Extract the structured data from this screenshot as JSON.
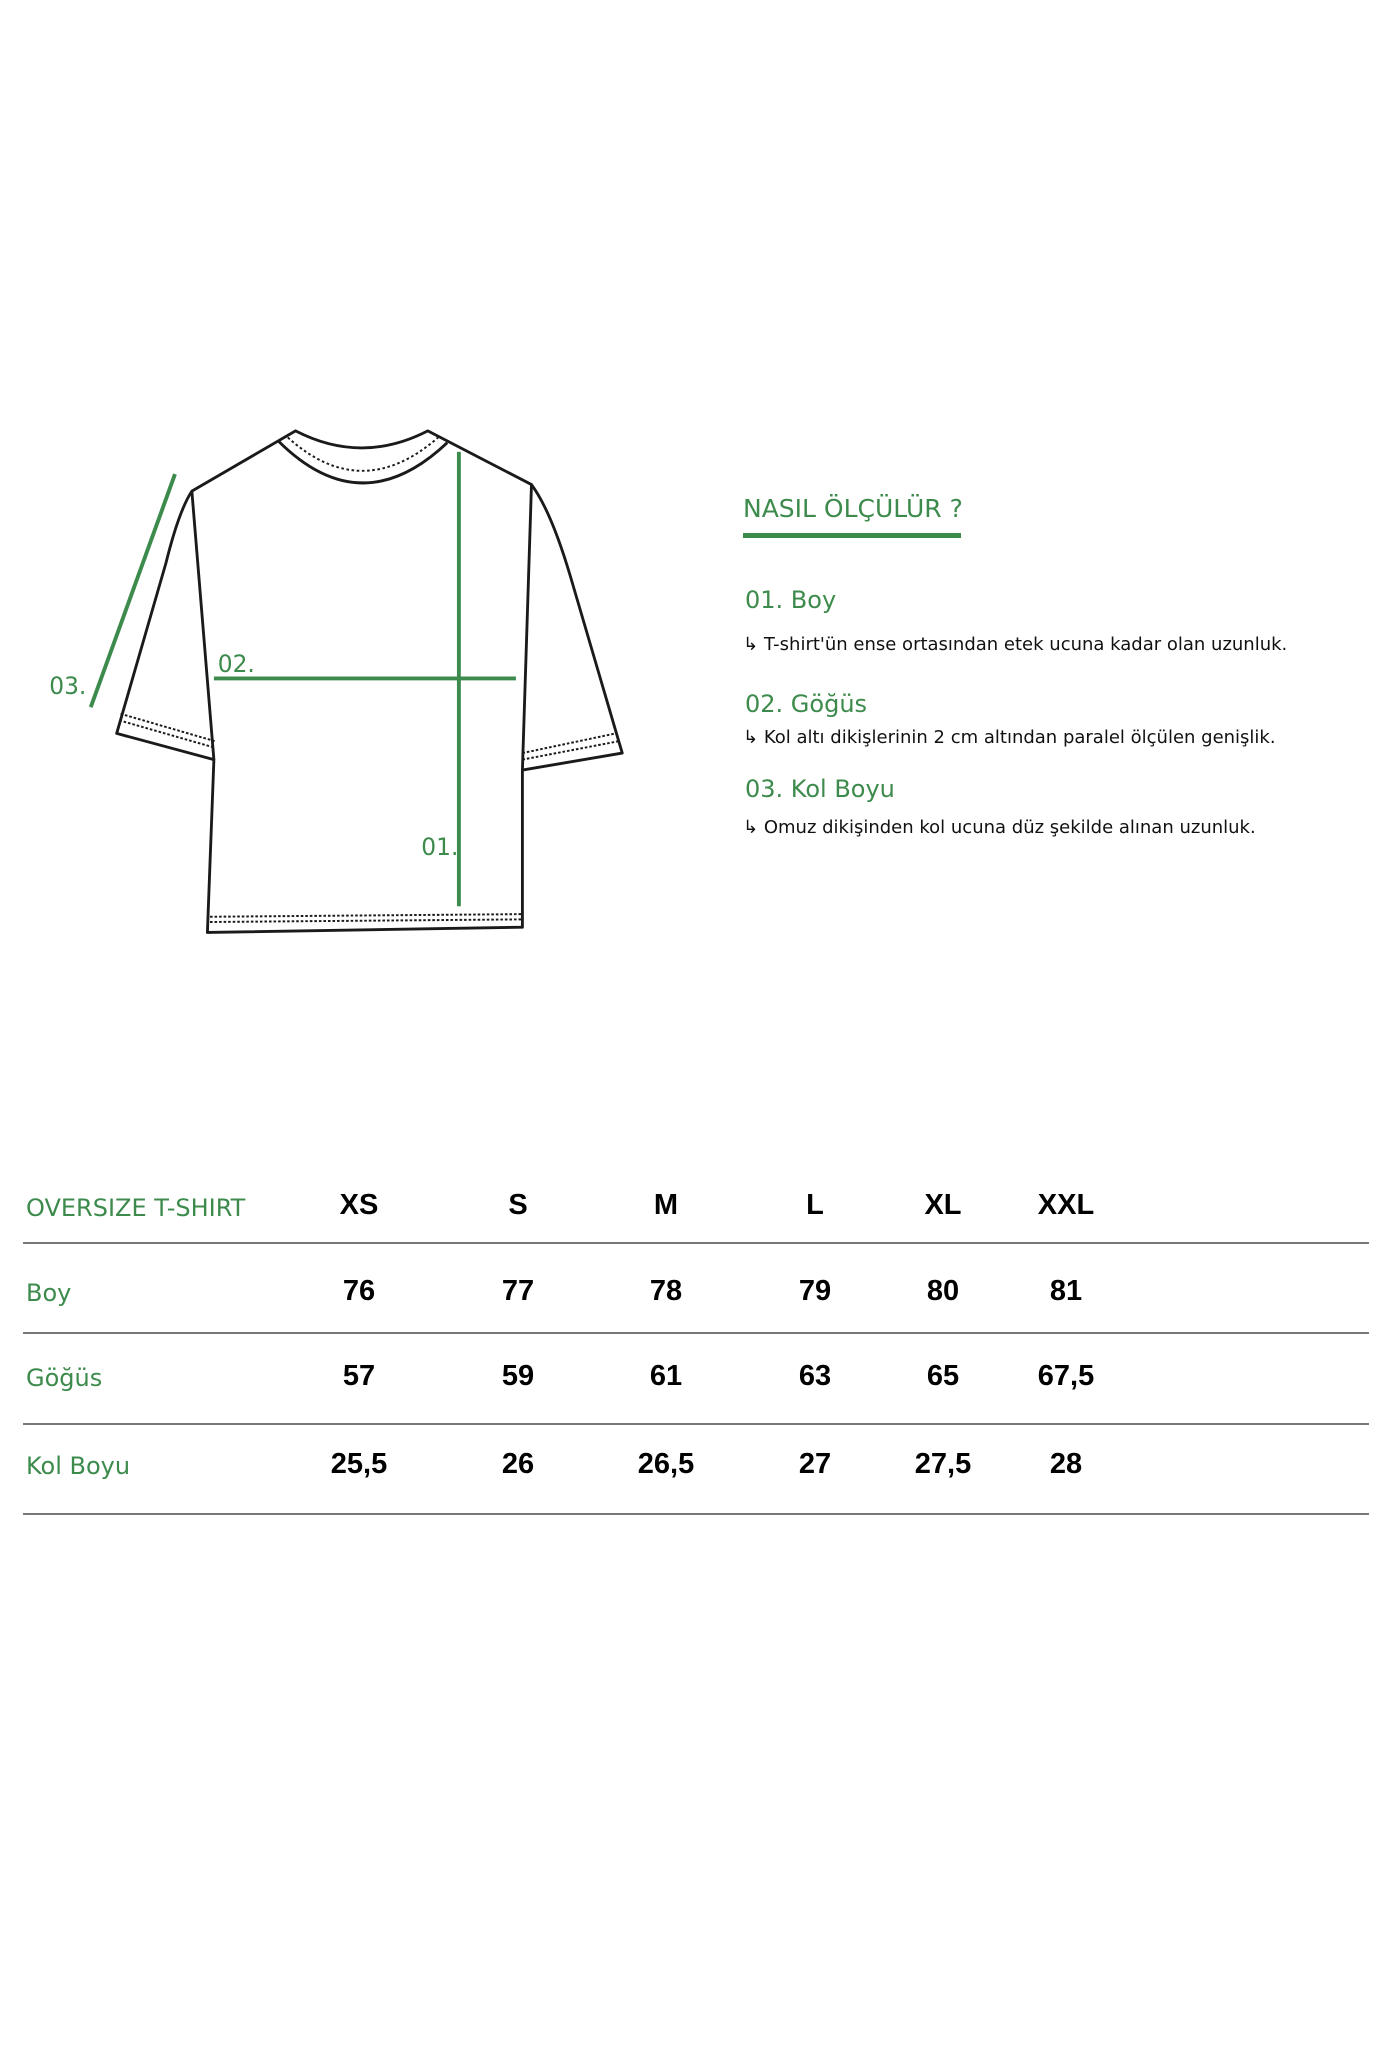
{
  "colors": {
    "accent": "#3d8b4c",
    "outline": "#1a1a1a",
    "rule": "#777777"
  },
  "diagram": {
    "label_01": "01.",
    "label_02": "02.",
    "label_03": "03."
  },
  "guide": {
    "title": "NASIL ÖLÇÜLÜR ?",
    "items": [
      {
        "title": "01. Boy",
        "arrow": "↳",
        "desc": "T-shirt'ün ense ortasından etek ucuna kadar olan uzunluk."
      },
      {
        "title": "02. Göğüs",
        "arrow": "↳",
        "desc": "Kol altı dikişlerinin 2 cm altından paralel ölçülen genişlik."
      },
      {
        "title": "03. Kol Boyu",
        "arrow": "↳",
        "desc": "Omuz dikişinden kol ucuna düz şekilde alınan uzunluk."
      }
    ]
  },
  "table": {
    "title": "OVERSIZE T-SHIRT",
    "sizes": [
      "XS",
      "S",
      "M",
      "L",
      "XL",
      "XXL"
    ],
    "rows": [
      {
        "label": "Boy",
        "values": [
          "76",
          "77",
          "78",
          "79",
          "80",
          "81"
        ]
      },
      {
        "label": "Göğüs",
        "values": [
          "57",
          "59",
          "61",
          "63",
          "65",
          "67,5"
        ]
      },
      {
        "label": "Kol Boyu",
        "values": [
          "25,5",
          "26",
          "26,5",
          "27",
          "27,5",
          "28"
        ]
      }
    ]
  }
}
